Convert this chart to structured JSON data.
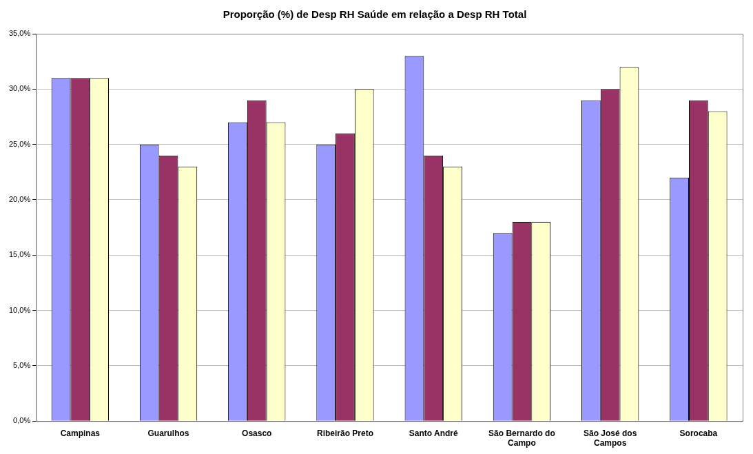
{
  "chart_data": {
    "type": "bar",
    "title": "Proporção (%) de Desp RH Saúde em relação a Desp RH Total",
    "categories": [
      "Campinas",
      "Guarulhos",
      "Osasco",
      "Ribeirão Preto",
      "Santo André",
      "São Bernardo do Campo",
      "São José dos Campos",
      "Sorocaba"
    ],
    "series": [
      {
        "color": "#9999ff",
        "values": [
          31,
          25,
          27,
          25,
          33,
          17,
          29,
          22
        ]
      },
      {
        "color": "#993366",
        "values": [
          31,
          24,
          29,
          26,
          24,
          18,
          30,
          29
        ]
      },
      {
        "color": "#ffffcc",
        "values": [
          31,
          23,
          27,
          30,
          23,
          18,
          32,
          28
        ]
      }
    ],
    "ylim": [
      0,
      35
    ],
    "yticks": [
      {
        "value": 0,
        "label": "0,0%"
      },
      {
        "value": 5,
        "label": "5,0%"
      },
      {
        "value": 10,
        "label": "10,0%"
      },
      {
        "value": 15,
        "label": "15,0%"
      },
      {
        "value": 20,
        "label": "20,0%"
      },
      {
        "value": 25,
        "label": "25,0%"
      },
      {
        "value": 30,
        "label": "30,0%"
      },
      {
        "value": 35,
        "label": "35,0%"
      }
    ],
    "grid": "y",
    "legend": false
  }
}
